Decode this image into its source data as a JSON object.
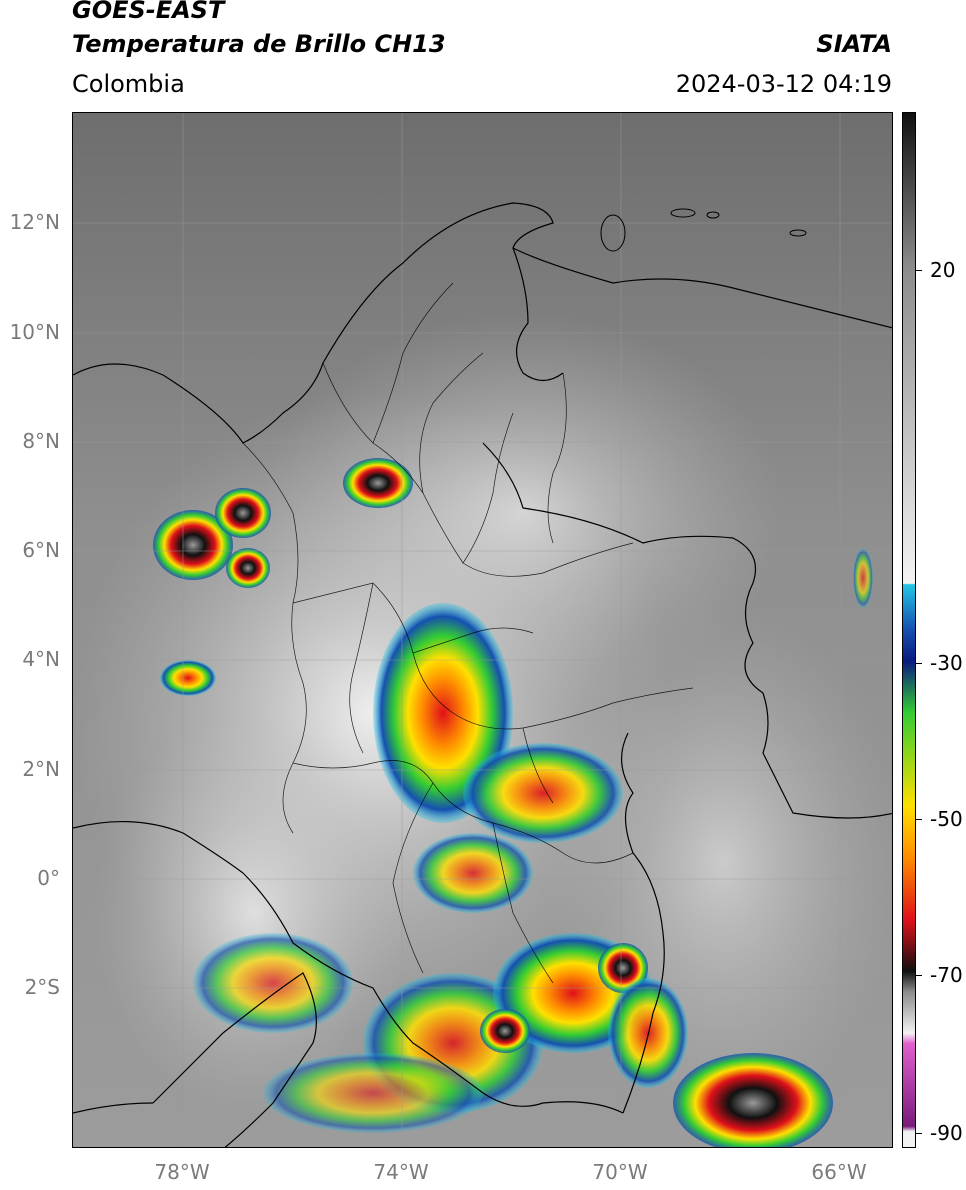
{
  "header": {
    "satellite": "GOES-EAST",
    "product": "Temperatura de Brillo CH13",
    "region": "Colombia",
    "agency": "SIATA",
    "datetime": "2024-03-12 04:19"
  },
  "map": {
    "latitude_labels": [
      "12°N",
      "10°N",
      "8°N",
      "6°N",
      "4°N",
      "2°N",
      "0°",
      "2°S"
    ],
    "longitude_labels": [
      "78°W",
      "74°W",
      "70°W",
      "66°W"
    ]
  },
  "colorbar": {
    "labels": [
      "20",
      "-30",
      "-50",
      "-70",
      "-90"
    ],
    "colors": {
      "white": "#f2f2f2",
      "cyan": "#22c6e6",
      "blue": "#1550b0",
      "darkblue": "#0a1a80",
      "green": "#33cc33",
      "yellow": "#ffe000",
      "orange": "#ff8c00",
      "red": "#e0101a",
      "black": "#101010",
      "gray": "#8c8c8c",
      "magenta": "#e060d0",
      "purple": "#7a1a7a"
    }
  }
}
